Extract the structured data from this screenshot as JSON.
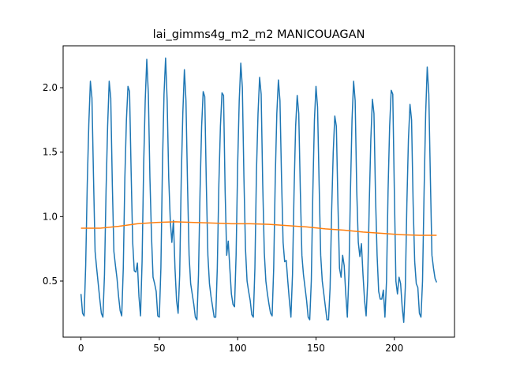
{
  "chart_data": {
    "type": "line",
    "title": "lai_gimms4g_m2_m2 MANICOUAGAN",
    "xlim": [
      -11.4,
      238.4
    ],
    "xticks": [
      0,
      50,
      100,
      150,
      200
    ],
    "ylim": [
      0.065,
      2.325
    ],
    "yticks": [
      0.5,
      {
        "value": 1,
        "label": "1.0"
      },
      1.5,
      {
        "value": 2,
        "label": "2.0"
      }
    ],
    "series": [
      {
        "color": "#1f77b4",
        "x": [
          0,
          1,
          2,
          3,
          4,
          5,
          6,
          7,
          8,
          9,
          10,
          11,
          12,
          13,
          14,
          15,
          16,
          17,
          18,
          19,
          20,
          21,
          22,
          23,
          24,
          25,
          26,
          27,
          28,
          29,
          30,
          31,
          32,
          33,
          34,
          35,
          36,
          37,
          38,
          39,
          40,
          41,
          42,
          43,
          44,
          45,
          46,
          47,
          48,
          49,
          50,
          51,
          52,
          53,
          54,
          55,
          56,
          57,
          58,
          59,
          60,
          61,
          62,
          63,
          64,
          65,
          66,
          67,
          68,
          69,
          70,
          71,
          72,
          73,
          74,
          75,
          76,
          77,
          78,
          79,
          80,
          81,
          82,
          83,
          84,
          85,
          86,
          87,
          88,
          89,
          90,
          91,
          92,
          93,
          94,
          95,
          96,
          97,
          98,
          99,
          100,
          101,
          102,
          103,
          104,
          105,
          106,
          107,
          108,
          109,
          110,
          111,
          112,
          113,
          114,
          115,
          116,
          117,
          118,
          119,
          120,
          121,
          122,
          123,
          124,
          125,
          126,
          127,
          128,
          129,
          130,
          131,
          132,
          133,
          134,
          135,
          136,
          137,
          138,
          139,
          140,
          141,
          142,
          143,
          144,
          145,
          146,
          147,
          148,
          149,
          150,
          151,
          152,
          153,
          154,
          155,
          156,
          157,
          158,
          159,
          160,
          161,
          162,
          163,
          164,
          165,
          166,
          167,
          168,
          169,
          170,
          171,
          172,
          173,
          174,
          175,
          176,
          177,
          178,
          179,
          180,
          181,
          182,
          183,
          184,
          185,
          186,
          187,
          188,
          189,
          190,
          191,
          192,
          193,
          194,
          195,
          196,
          197,
          198,
          199,
          200,
          201,
          202,
          203,
          204,
          205,
          206,
          207,
          208,
          209,
          210,
          211,
          212,
          213,
          214,
          215,
          216,
          217,
          218,
          219,
          220,
          221,
          222,
          223,
          224,
          225,
          226,
          227
        ],
        "values": [
          0.4,
          0.25,
          0.23,
          0.62,
          1.25,
          1.72,
          2.05,
          1.92,
          1.3,
          0.73,
          0.6,
          0.48,
          0.36,
          0.25,
          0.22,
          0.55,
          1.2,
          1.7,
          2.05,
          1.92,
          1.25,
          0.73,
          0.62,
          0.52,
          0.38,
          0.27,
          0.23,
          0.6,
          1.3,
          1.75,
          2.01,
          1.97,
          1.35,
          0.8,
          0.58,
          0.57,
          0.64,
          0.38,
          0.23,
          0.65,
          1.4,
          1.9,
          2.22,
          1.95,
          1.3,
          0.85,
          0.53,
          0.48,
          0.42,
          0.23,
          0.22,
          0.6,
          1.4,
          1.95,
          2.23,
          1.9,
          1.3,
          0.97,
          0.8,
          0.97,
          0.6,
          0.35,
          0.25,
          0.55,
          1.3,
          1.8,
          2.14,
          1.9,
          1.25,
          0.7,
          0.48,
          0.4,
          0.32,
          0.22,
          0.2,
          0.55,
          1.2,
          1.7,
          1.97,
          1.93,
          1.25,
          0.7,
          0.48,
          0.38,
          0.3,
          0.22,
          0.22,
          0.6,
          1.25,
          1.7,
          1.96,
          1.94,
          1.2,
          0.7,
          0.81,
          0.6,
          0.4,
          0.32,
          0.3,
          0.7,
          1.4,
          1.9,
          2.19,
          2.0,
          1.3,
          0.75,
          0.5,
          0.42,
          0.35,
          0.24,
          0.22,
          0.6,
          1.35,
          1.8,
          2.08,
          1.95,
          1.25,
          0.72,
          0.5,
          0.4,
          0.32,
          0.25,
          0.23,
          0.6,
          1.3,
          1.8,
          2.06,
          1.9,
          1.3,
          0.8,
          0.65,
          0.66,
          0.5,
          0.35,
          0.22,
          0.55,
          1.2,
          1.7,
          1.94,
          1.8,
          1.2,
          0.7,
          0.55,
          0.45,
          0.35,
          0.22,
          0.2,
          0.5,
          1.2,
          1.75,
          2.01,
          1.85,
          1.25,
          0.7,
          0.5,
          0.4,
          0.3,
          0.2,
          0.2,
          0.45,
          1.05,
          1.5,
          1.78,
          1.7,
          1.1,
          0.6,
          0.53,
          0.7,
          0.62,
          0.4,
          0.22,
          0.55,
          1.2,
          1.75,
          2.05,
          1.9,
          1.2,
          0.8,
          0.69,
          0.79,
          0.55,
          0.35,
          0.23,
          0.5,
          1.1,
          1.6,
          1.91,
          1.8,
          1.15,
          0.7,
          0.42,
          0.36,
          0.36,
          0.43,
          0.22,
          0.5,
          1.2,
          1.7,
          1.98,
          1.95,
          1.2,
          0.5,
          0.4,
          0.53,
          0.48,
          0.3,
          0.18,
          0.45,
          1.1,
          1.6,
          1.87,
          1.75,
          1.1,
          0.65,
          0.48,
          0.45,
          0.25,
          0.22,
          0.5,
          1.2,
          1.8,
          2.16,
          1.95,
          1.3,
          0.7,
          0.6,
          0.52,
          0.49
        ]
      },
      {
        "color": "#ff7f0e",
        "x": [
          0,
          12,
          24,
          36,
          48,
          60,
          72,
          84,
          96,
          108,
          120,
          132,
          144,
          156,
          168,
          180,
          192,
          204,
          216,
          227
        ],
        "values": [
          0.91,
          0.91,
          0.925,
          0.945,
          0.955,
          0.96,
          0.955,
          0.95,
          0.945,
          0.945,
          0.94,
          0.93,
          0.92,
          0.905,
          0.895,
          0.88,
          0.87,
          0.86,
          0.855,
          0.855
        ]
      }
    ]
  }
}
